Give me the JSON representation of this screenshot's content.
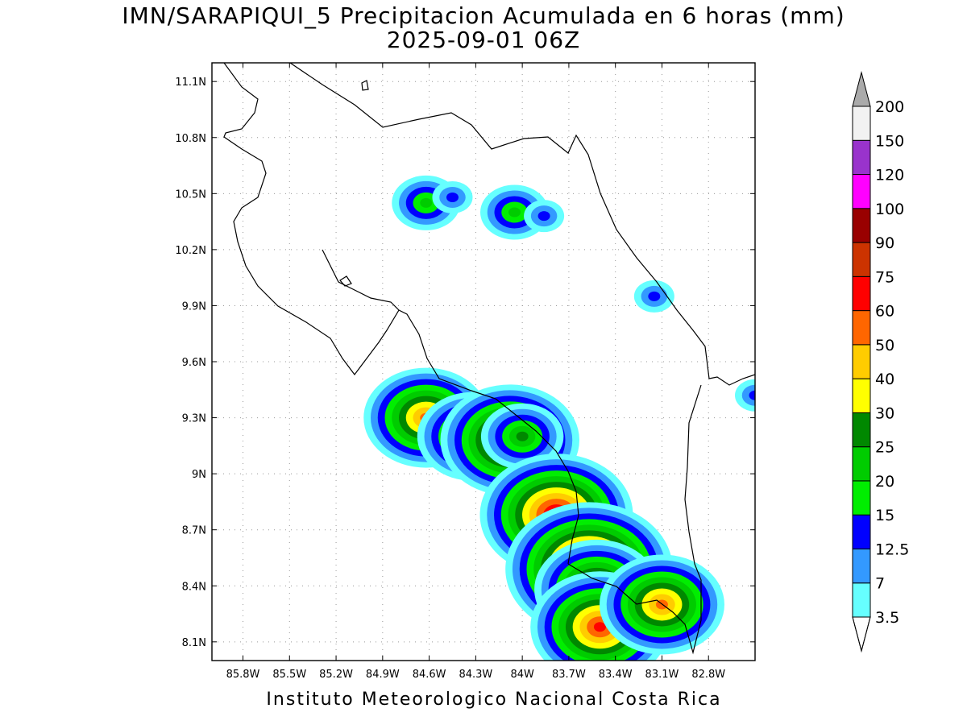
{
  "title": "IMN/SARAPIQUI_5 Precipitacion Acumulada en 6 horas (mm)",
  "subtitle": "2025-09-01 06Z",
  "footer": "Instituto Meteorologico Nacional Costa Rica",
  "map": {
    "lon_range": [
      -86.0,
      -82.5
    ],
    "lat_range": [
      8.0,
      11.2
    ],
    "lon_ticks": [
      "85.8W",
      "85.5W",
      "85.2W",
      "84.9W",
      "84.6W",
      "84.3W",
      "84W",
      "83.7W",
      "83.4W",
      "83.1W",
      "82.8W"
    ],
    "lon_tick_values": [
      -85.8,
      -85.5,
      -85.2,
      -84.9,
      -84.6,
      -84.3,
      -84.0,
      -83.7,
      -83.4,
      -83.1,
      -82.8
    ],
    "lat_ticks": [
      "11.1N",
      "10.8N",
      "10.5N",
      "10.2N",
      "9.9N",
      "9.6N",
      "9.3N",
      "9N",
      "8.7N",
      "8.4N",
      "8.1N"
    ],
    "lat_tick_values": [
      11.1,
      10.8,
      10.5,
      10.2,
      9.9,
      9.6,
      9.3,
      9.0,
      8.7,
      8.4,
      8.1
    ],
    "grid": "dotted"
  },
  "colorbar": {
    "labels": [
      "3.5",
      "7",
      "12.5",
      "15",
      "20",
      "25",
      "30",
      "40",
      "50",
      "60",
      "75",
      "90",
      "100",
      "120",
      "150",
      "200"
    ],
    "colors": [
      "#66ffff",
      "#3399ff",
      "#0000ff",
      "#00ee00",
      "#00cc00",
      "#008800",
      "#ffff00",
      "#ffcc00",
      "#ff6600",
      "#ff0000",
      "#cc3300",
      "#990000",
      "#ff00ff",
      "#9933cc",
      "#f2f2f2",
      "#aaaaaa"
    ]
  },
  "rain_cells": [
    {
      "lon": -84.62,
      "lat": 10.45,
      "level": 4
    },
    {
      "lon": -84.45,
      "lat": 10.48,
      "level": 2
    },
    {
      "lon": -84.05,
      "lat": 10.4,
      "level": 4
    },
    {
      "lon": -83.86,
      "lat": 10.38,
      "level": 2
    },
    {
      "lon": -84.62,
      "lat": 9.3,
      "level": 8
    },
    {
      "lon": -84.32,
      "lat": 9.2,
      "level": 7
    },
    {
      "lon": -84.08,
      "lat": 9.18,
      "level": 9
    },
    {
      "lon": -84.0,
      "lat": 9.2,
      "level": 5
    },
    {
      "lon": -83.78,
      "lat": 8.78,
      "level": 10
    },
    {
      "lon": -83.57,
      "lat": 8.49,
      "level": 11
    },
    {
      "lon": -83.52,
      "lat": 8.38,
      "level": 8
    },
    {
      "lon": -83.5,
      "lat": 8.18,
      "level": 9
    },
    {
      "lon": -83.23,
      "lat": 8.3,
      "level": 5
    },
    {
      "lon": -83.1,
      "lat": 8.3,
      "level": 8
    },
    {
      "lon": -82.5,
      "lat": 9.42,
      "level": 2
    },
    {
      "lon": -83.15,
      "lat": 9.95,
      "level": 2
    }
  ]
}
